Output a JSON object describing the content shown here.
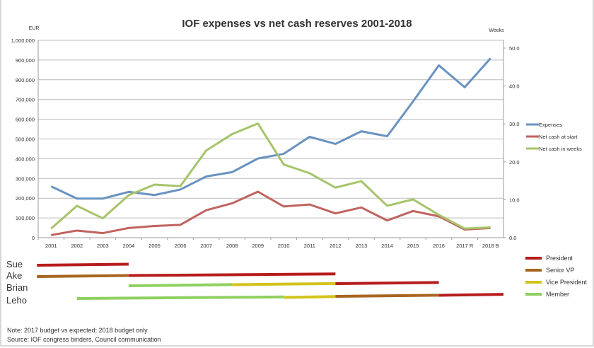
{
  "chart_data": {
    "type": "line",
    "title": "IOF expenses vs net cash reserves 2001-2018",
    "ylabel_left": "EUR",
    "ylabel_right": "Weeks",
    "ylim_left": [
      0,
      1000000
    ],
    "ylim_right": [
      0,
      50
    ],
    "yticks_left": [
      "0",
      "100,000",
      "200,000",
      "300,000",
      "400,000",
      "500,000",
      "600,000",
      "700,000",
      "800,000",
      "900,000",
      "1,000,000"
    ],
    "yticks_right": [
      "0.0",
      "10.0",
      "20.0",
      "30.0",
      "40.0",
      "50.0"
    ],
    "grid": true,
    "legend_position": "right",
    "categories": [
      "2001",
      "2002",
      "2003",
      "2004",
      "2005",
      "2006",
      "2007",
      "2008",
      "2009",
      "2010",
      "2011",
      "2012",
      "2013",
      "2014",
      "2015",
      "2016",
      "2017 R",
      "2018 B"
    ],
    "series": [
      {
        "name": "Expenses",
        "axis": "left",
        "color": "#6a93c0",
        "values": [
          260000,
          198000,
          198000,
          232000,
          216000,
          244000,
          310000,
          332000,
          401000,
          425000,
          511000,
          475000,
          539000,
          514000,
          690000,
          873000,
          762000,
          909000
        ]
      },
      {
        "name": "Net cash at start",
        "axis": "left",
        "color": "#c0635f",
        "values": [
          13000,
          36000,
          23000,
          49000,
          59000,
          65000,
          139000,
          174000,
          233000,
          158000,
          168000,
          123000,
          153000,
          87000,
          135000,
          108000,
          41000,
          49000
        ]
      },
      {
        "name": "Net cash in weeks",
        "axis": "right",
        "color": "#a6c46a",
        "values": [
          2.4,
          8.4,
          5.1,
          11.2,
          14.0,
          13.6,
          23.0,
          27.3,
          30.1,
          19.3,
          17.0,
          13.2,
          14.9,
          8.4,
          10.1,
          6.0,
          2.4,
          2.7
        ]
      }
    ]
  },
  "tenure": {
    "roles": [
      {
        "name": "President",
        "color": "#b71c1c"
      },
      {
        "name": "Senior VP",
        "color": "#a8651f"
      },
      {
        "name": "Vice President",
        "color": "#d2c41e"
      },
      {
        "name": "Member",
        "color": "#8fd060"
      }
    ],
    "people": [
      {
        "name": "Sue",
        "spans": [
          {
            "role": 0,
            "from": 2000.45,
            "to": 2004
          }
        ]
      },
      {
        "name": "Ake",
        "spans": [
          {
            "role": 1,
            "from": 2000.45,
            "to": 2004
          },
          {
            "role": 0,
            "from": 2004,
            "to": 2012
          }
        ]
      },
      {
        "name": "Brian",
        "spans": [
          {
            "role": 3,
            "from": 2004,
            "to": 2008
          },
          {
            "role": 2,
            "from": 2008,
            "to": 2012
          },
          {
            "role": 0,
            "from": 2012,
            "to": 2016
          }
        ]
      },
      {
        "name": "Leho",
        "spans": [
          {
            "role": 3,
            "from": 2002,
            "to": 2010
          },
          {
            "role": 2,
            "from": 2010,
            "to": 2012
          },
          {
            "role": 1,
            "from": 2012,
            "to": 2016
          },
          {
            "role": 0,
            "from": 2016,
            "to": 2018.5
          }
        ]
      }
    ]
  },
  "notes": {
    "note": "Note: 2017 budget vs expected; 2018 budget only",
    "source": "Source: IOF congress binders, Council communication"
  }
}
